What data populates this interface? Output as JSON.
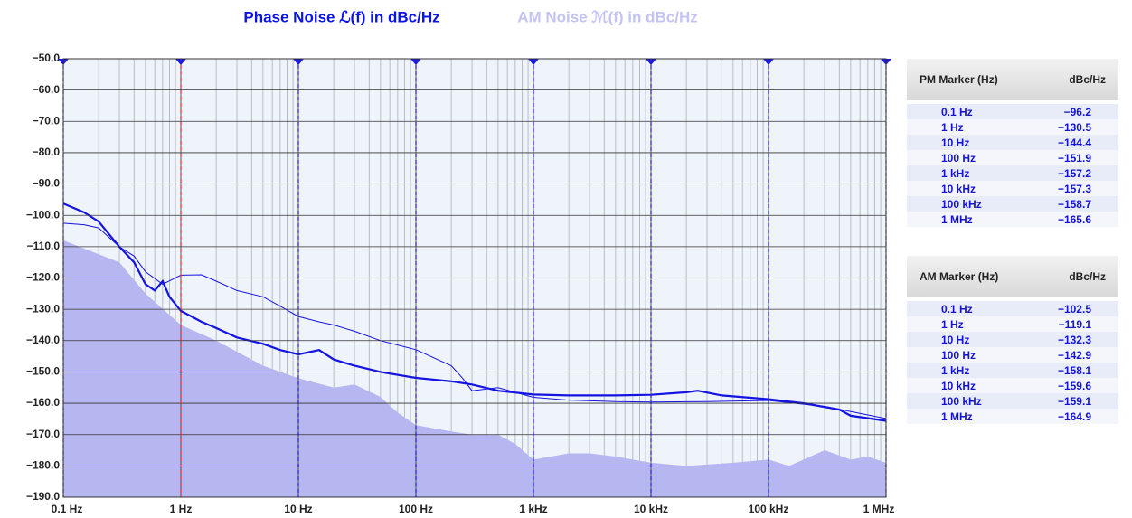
{
  "chart_data": {
    "type": "line",
    "xscale": "log",
    "legend": [
      "Phase Noise ℒ(f) in dBc/Hz",
      "AM Noise ℳ(f) in dBc/Hz"
    ],
    "legend_colors": [
      "#0a14e6",
      "#c4c4f2"
    ],
    "xlim": [
      0.1,
      1000000
    ],
    "xticks": [
      {
        "value": 0.1,
        "label": "0.1 Hz"
      },
      {
        "value": 1,
        "label": "1 Hz"
      },
      {
        "value": 10,
        "label": "10 Hz"
      },
      {
        "value": 100,
        "label": "100 Hz"
      },
      {
        "value": 1000,
        "label": "1 kHz"
      },
      {
        "value": 10000,
        "label": "10 kHz"
      },
      {
        "value": 100000,
        "label": "100 kHz"
      },
      {
        "value": 1000000,
        "label": "1 MHz"
      }
    ],
    "ylim": [
      -190,
      -50
    ],
    "yticks": [
      {
        "value": -50,
        "label": "−50.0"
      },
      {
        "value": -60,
        "label": "−60.0"
      },
      {
        "value": -70,
        "label": "−70.0"
      },
      {
        "value": -80,
        "label": "−80.0"
      },
      {
        "value": -90,
        "label": "−90.0"
      },
      {
        "value": -100,
        "label": "−100.0"
      },
      {
        "value": -110,
        "label": "−110.0"
      },
      {
        "value": -120,
        "label": "−120.0"
      },
      {
        "value": -130,
        "label": "−130.0"
      },
      {
        "value": -140,
        "label": "−140.0"
      },
      {
        "value": -150,
        "label": "−150.0"
      },
      {
        "value": -160,
        "label": "−160.0"
      },
      {
        "value": -170,
        "label": "−170.0"
      },
      {
        "value": -180,
        "label": "−180.0"
      },
      {
        "value": -190,
        "label": "−190.0"
      }
    ],
    "grid": true,
    "marker_lines": {
      "x": [
        0.1,
        1,
        10,
        100,
        1000,
        10000,
        100000,
        1000000
      ],
      "active": 1,
      "color": "#1a1ae0",
      "active_color": "#ff2020"
    },
    "series": [
      {
        "color": "#b6b6f0",
        "fill": true,
        "width": 0,
        "x": [
          0.1,
          0.3,
          0.5,
          1,
          2,
          5,
          10,
          20,
          30,
          50,
          70,
          100,
          200,
          300,
          500,
          700,
          1000,
          2000,
          3000,
          5000,
          10000,
          20000,
          50000,
          100000,
          150000,
          300000,
          500000,
          700000,
          1000000
        ],
        "values": [
          -108,
          -115,
          -125,
          -135,
          -140,
          -148,
          -152,
          -155,
          -154,
          -158,
          -163,
          -167,
          -169,
          -170,
          -170,
          -173,
          -178,
          -176,
          -176,
          -177,
          -179,
          -180,
          -179,
          -178,
          -180,
          -175,
          -178,
          -177,
          -179
        ]
      },
      {
        "name": "AM Noise ℳ(f) in dBc/Hz",
        "color": "#1414e0",
        "width": 1,
        "x": [
          0.1,
          0.15,
          0.2,
          0.3,
          0.4,
          0.5,
          0.7,
          1,
          1.5,
          2,
          3,
          5,
          7,
          10,
          15,
          20,
          30,
          50,
          100,
          200,
          250,
          300,
          500,
          1000,
          2000,
          5000,
          10000,
          30000,
          100000,
          300000,
          1000000
        ],
        "values": [
          -102.5,
          -103,
          -104,
          -110,
          -113,
          -118,
          -122,
          -119.1,
          -119,
          -121,
          -124,
          -126,
          -129,
          -132.3,
          -134,
          -135,
          -137,
          -140,
          -142.9,
          -148,
          -152,
          -156,
          -155,
          -158.1,
          -159,
          -159.5,
          -159.6,
          -159.5,
          -159.1,
          -161,
          -164.9
        ]
      },
      {
        "name": "Phase Noise ℒ(f) in dBc/Hz",
        "color": "#1414e0",
        "width": 2.2,
        "x": [
          0.1,
          0.15,
          0.2,
          0.3,
          0.4,
          0.5,
          0.6,
          0.7,
          0.8,
          1,
          1.5,
          2,
          3,
          5,
          7,
          10,
          15,
          20,
          30,
          50,
          100,
          200,
          300,
          500,
          1000,
          2000,
          5000,
          10000,
          20000,
          25000,
          40000,
          100000,
          200000,
          400000,
          500000,
          1000000
        ],
        "values": [
          -96.2,
          -99,
          -102,
          -110,
          -115,
          -122,
          -124,
          -121,
          -126,
          -130.5,
          -134,
          -136,
          -139,
          -141,
          -143,
          -144.4,
          -143,
          -146,
          -148,
          -150,
          -151.9,
          -153,
          -154,
          -156,
          -157.2,
          -157.5,
          -157.5,
          -157.3,
          -156.5,
          -156,
          -157.5,
          -158.7,
          -160,
          -162,
          -164,
          -165.6
        ]
      }
    ]
  },
  "pm_table": {
    "header": [
      "PM Marker (Hz)",
      "dBc/Hz"
    ],
    "rows": [
      [
        "0.1 Hz",
        "−96.2"
      ],
      [
        "1 Hz",
        "−130.5"
      ],
      [
        "10 Hz",
        "−144.4"
      ],
      [
        "100 Hz",
        "−151.9"
      ],
      [
        "1 kHz",
        "−157.2"
      ],
      [
        "10 kHz",
        "−157.3"
      ],
      [
        "100 kHz",
        "−158.7"
      ],
      [
        "1 MHz",
        "−165.6"
      ]
    ]
  },
  "am_table": {
    "header": [
      "AM Marker (Hz)",
      "dBc/Hz"
    ],
    "rows": [
      [
        "0.1 Hz",
        "−102.5"
      ],
      [
        "1 Hz",
        "−119.1"
      ],
      [
        "10 Hz",
        "−132.3"
      ],
      [
        "100 Hz",
        "−142.9"
      ],
      [
        "1 kHz",
        "−158.1"
      ],
      [
        "10 kHz",
        "−159.6"
      ],
      [
        "100 kHz",
        "−159.1"
      ],
      [
        "1 MHz",
        "−164.9"
      ]
    ]
  }
}
